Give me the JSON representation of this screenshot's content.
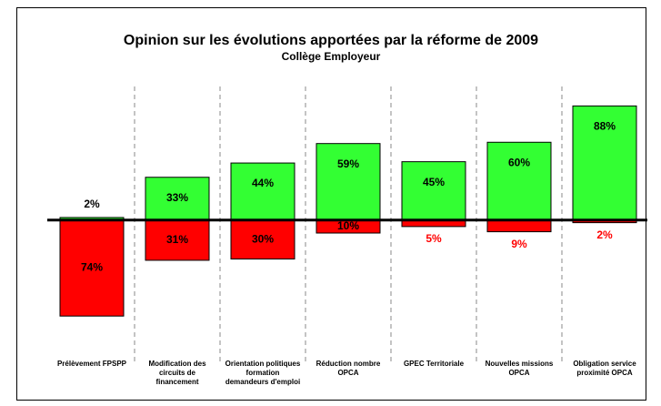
{
  "chart_data": {
    "type": "diverging_bar",
    "title": "Opinion sur les évolutions apportées par la réforme de 2009",
    "subtitle": "Collège Employeur",
    "categories": [
      "Prélèvement FPSPP",
      "Modification des circuits de financement",
      "Orientation politiques formation demandeurs d'emploi",
      "Réduction nombre OPCA",
      "GPEC Territoriale",
      "Nouvelles missions OPCA",
      "Obligation service proximité OPCA"
    ],
    "series": [
      {
        "color": "#33ff33",
        "values": [
          2,
          33,
          44,
          59,
          45,
          60,
          88
        ],
        "value_labels": [
          "2%",
          "33%",
          "44%",
          "59%",
          "45%",
          "60%",
          "88%"
        ]
      },
      {
        "color": "#ff0000",
        "values": [
          -74,
          -31,
          -30,
          -10,
          -5,
          -9,
          -2
        ],
        "value_labels": [
          "74%",
          "31%",
          "30%",
          "10%",
          "5%",
          "9%",
          "2%"
        ]
      }
    ],
    "ylim": [
      -90,
      103
    ]
  }
}
